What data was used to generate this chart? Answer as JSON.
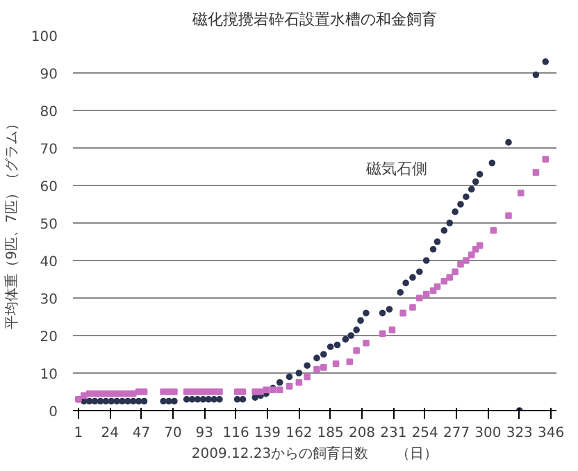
{
  "chart_data": {
    "type": "scatter",
    "title": "磁化撹攪岩砕石設置水槽の和金飼育",
    "xlabel": "2009.12.23からの飼育日数　　（日）",
    "ylabel": "平均体重（9匹、7匹）（グラム）",
    "xlim": [
      -3,
      350
    ],
    "xticks": [
      1,
      24,
      47,
      70,
      93,
      116,
      139,
      162,
      185,
      208,
      231,
      254,
      277,
      300,
      323,
      346
    ],
    "ylim": [
      0,
      100
    ],
    "yticks": [
      0,
      10,
      20,
      30,
      40,
      50,
      60,
      70,
      80,
      90,
      100
    ],
    "grid": "y",
    "series": [
      {
        "name": "磁気石側",
        "color": "#2a3350",
        "marker": "circle",
        "x": [
          1,
          5,
          9,
          13,
          17,
          21,
          25,
          29,
          33,
          37,
          41,
          45,
          49,
          63,
          67,
          71,
          80,
          84,
          88,
          92,
          96,
          100,
          104,
          117,
          121,
          130,
          134,
          138,
          143,
          148,
          155,
          162,
          168,
          175,
          180,
          185,
          190,
          196,
          200,
          204,
          207,
          211,
          223,
          228,
          236,
          240,
          245,
          250,
          255,
          260,
          263,
          268,
          272,
          276,
          280,
          284,
          288,
          291,
          294,
          303,
          315,
          323,
          335,
          342
        ],
        "values": [
          3,
          2.5,
          2.5,
          2.5,
          2.5,
          2.5,
          2.5,
          2.5,
          2.5,
          2.5,
          2.5,
          2.5,
          2.5,
          2.5,
          2.5,
          2.5,
          3,
          3,
          3,
          3,
          3,
          3,
          3,
          3,
          3,
          3.5,
          4,
          4.5,
          6,
          7.5,
          9,
          10,
          12,
          14,
          15,
          17,
          17.5,
          19,
          20,
          21.5,
          24,
          26,
          26,
          27,
          31.5,
          34,
          35.5,
          37,
          40,
          43,
          45,
          48,
          50,
          53,
          55,
          57,
          59,
          61,
          63,
          66,
          71.5,
          0,
          89.5,
          93
        ]
      },
      {
        "color": "#c86ec0",
        "marker": "square",
        "x": [
          1,
          5,
          9,
          13,
          17,
          21,
          25,
          29,
          33,
          37,
          41,
          45,
          49,
          63,
          67,
          71,
          80,
          84,
          88,
          92,
          96,
          100,
          104,
          117,
          121,
          130,
          134,
          138,
          143,
          148,
          155,
          162,
          168,
          175,
          180,
          189,
          199,
          204,
          211,
          223,
          230,
          238,
          245,
          250,
          255,
          260,
          263,
          268,
          272,
          276,
          280,
          284,
          288,
          291,
          294,
          304,
          315,
          324,
          335,
          342
        ],
        "values": [
          3,
          4,
          4.5,
          4.5,
          4.5,
          4.5,
          4.5,
          4.5,
          4.5,
          4.5,
          4.5,
          5,
          5,
          5,
          5,
          5,
          5,
          5,
          5,
          5,
          5,
          5,
          5,
          5,
          5,
          5,
          5,
          5.5,
          5.5,
          5.5,
          6.5,
          7.5,
          9,
          11,
          11.5,
          12.5,
          13,
          16,
          18,
          20.5,
          21.5,
          26,
          27.5,
          30,
          31,
          32,
          33,
          34.5,
          35.5,
          37,
          39,
          40,
          41.5,
          43,
          44,
          48,
          52,
          58,
          63.5,
          67
        ]
      }
    ]
  }
}
